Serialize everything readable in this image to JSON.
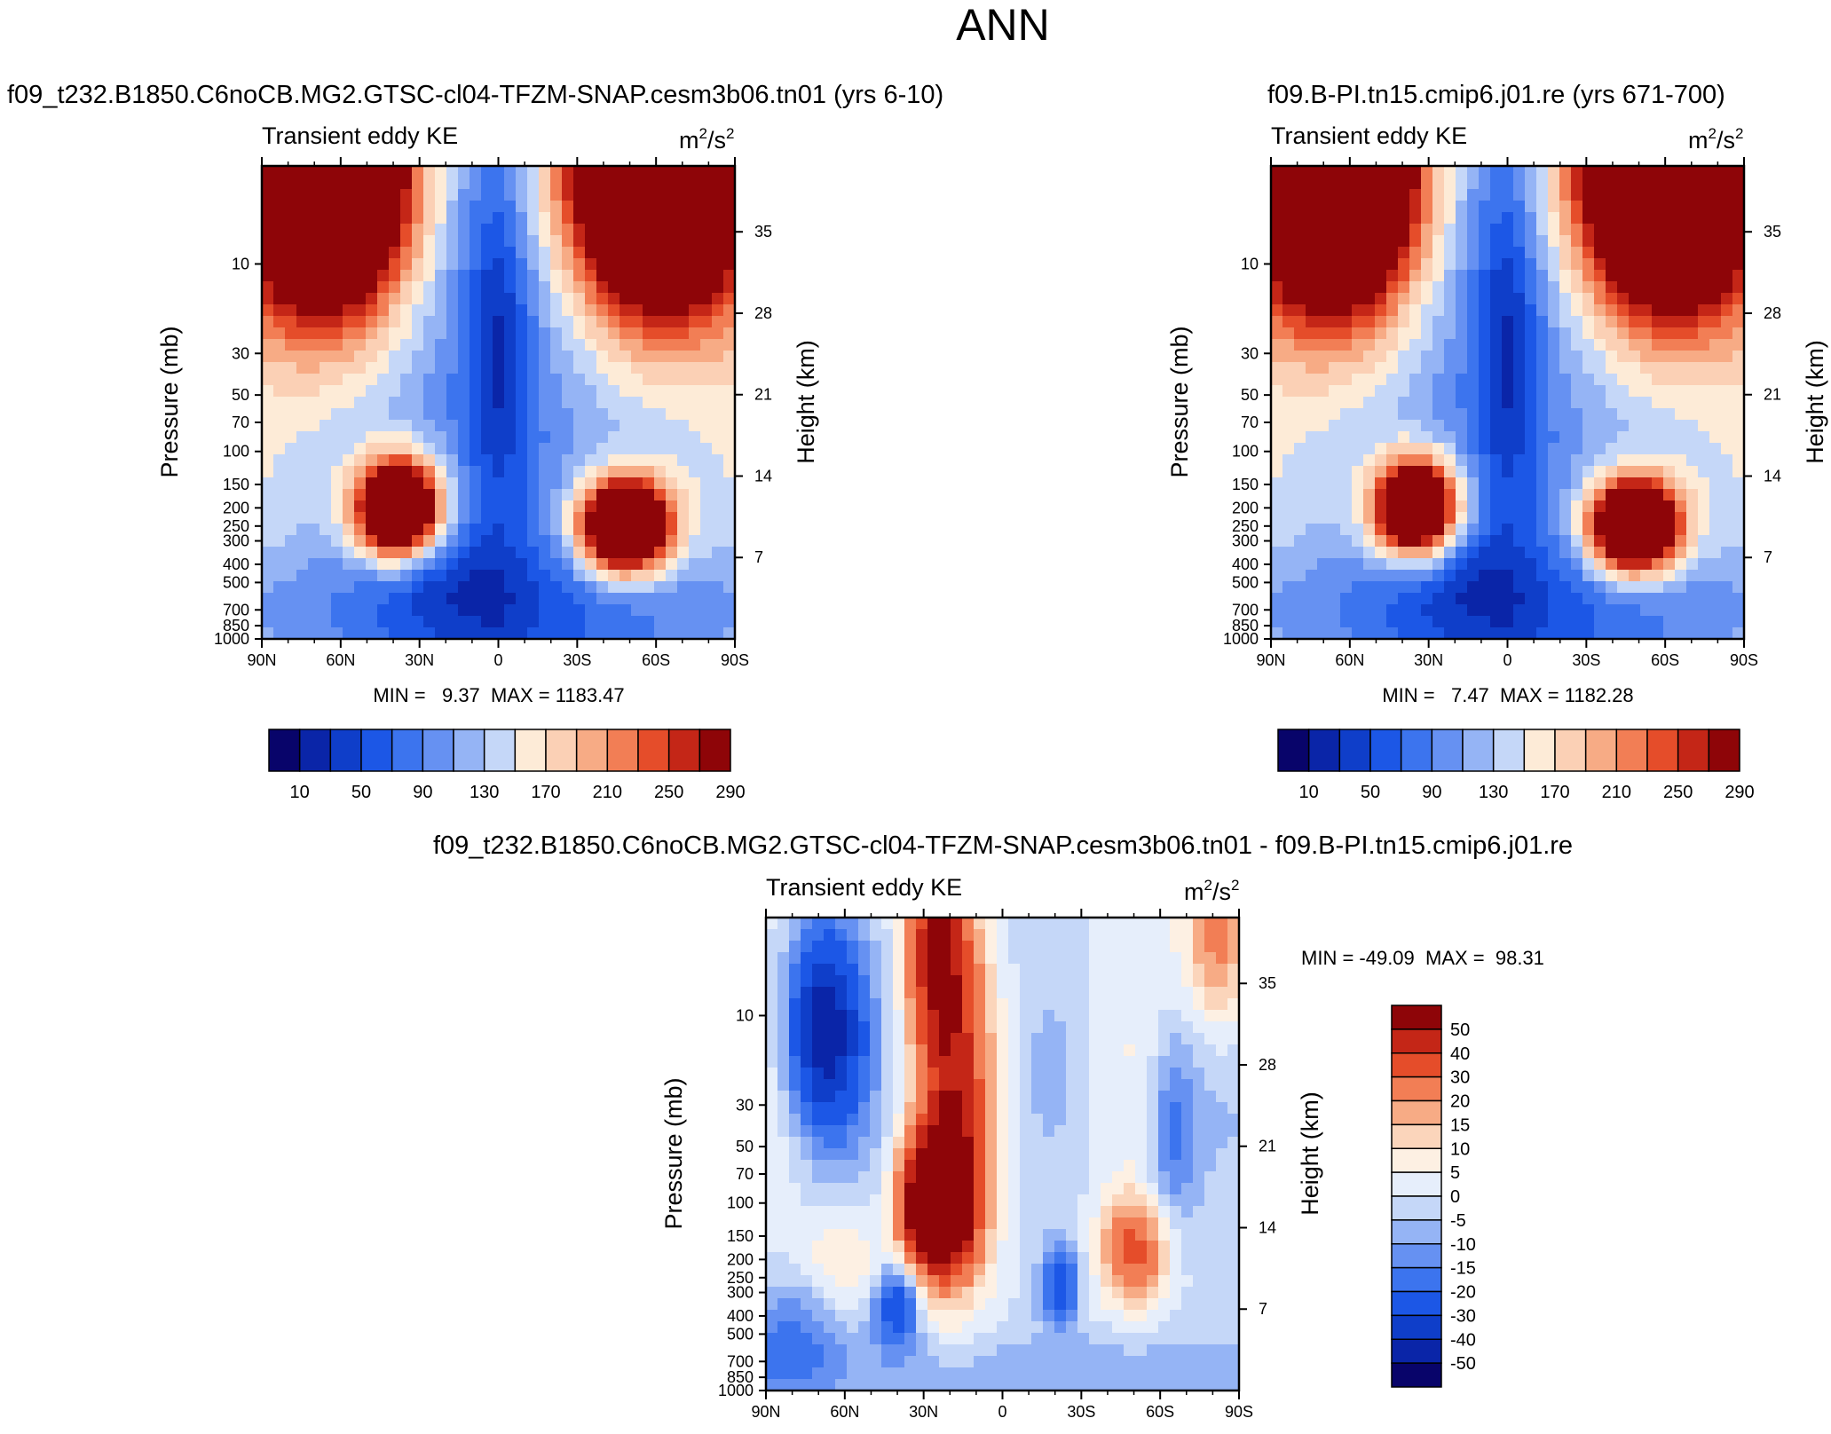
{
  "figure": {
    "title": "ANN"
  },
  "colors": {
    "panel_scale": [
      "#08046a",
      "#0a25a8",
      "#0f3ec9",
      "#1c57e6",
      "#3c74ee",
      "#6691f2",
      "#95b4f5",
      "#c5d7f8",
      "#fdebd7",
      "#fbd0b5",
      "#f7ab85",
      "#f27e55",
      "#e54d2a",
      "#c42617",
      "#8e0508"
    ],
    "diff_scale": [
      "#08046a",
      "#0a25a8",
      "#0f3ec9",
      "#1c57e6",
      "#3c74ee",
      "#6691f2",
      "#95b4f5",
      "#c5d7f8",
      "#e6eefb",
      "#fdf0e3",
      "#fbd5bb",
      "#f7ab85",
      "#f27e55",
      "#e54d2a",
      "#c42617",
      "#8e0508"
    ]
  },
  "chart_data": [
    {
      "type": "heatmap",
      "title": "f09_t232.B1850.C6noCB.MG2.GTSC-cl04-TFZM-SNAP.cesm3b06.tn01 (yrs 6-10)",
      "left_string": "Transient eddy KE",
      "units": "m2/s2",
      "units_base": "m",
      "units_exp1": "2",
      "units_mid": "/s",
      "units_exp2": "2",
      "xlabel": "",
      "ylabel": "Pressure (mb)",
      "ylabel_right": "Height (km)",
      "x_ticks": [
        "90N",
        "60N",
        "30N",
        "0",
        "30S",
        "60S",
        "90S"
      ],
      "y_ticks": [
        "10",
        "30",
        "50",
        "70",
        "100",
        "150",
        "200",
        "250",
        "300",
        "400",
        "500",
        "700",
        "850",
        "1000"
      ],
      "y_ticks_right": [
        "35",
        "28",
        "21",
        "14",
        "7"
      ],
      "xlim": [
        90,
        -90
      ],
      "ylim": [
        1000,
        3
      ],
      "stats": "MIN =   9.37  MAX = 1183.47",
      "min": 9.37,
      "max": 1183.47,
      "colorbar_labels": [
        "10",
        "50",
        "90",
        "130",
        "170",
        "210",
        "250",
        "290"
      ],
      "features": {
        "strat_fill": 300,
        "north_jet": {
          "lat": 38,
          "p": 200,
          "peak": 300
        },
        "south_jet": {
          "lat": -48,
          "p": 250,
          "peak": 300
        },
        "equatorial_min": 20
      }
    },
    {
      "type": "heatmap",
      "title": "f09.B-PI.tn15.cmip6.j01.re (yrs 671-700)",
      "left_string": "Transient eddy KE",
      "units": "m2/s2",
      "units_base": "m",
      "units_exp1": "2",
      "units_mid": "/s",
      "units_exp2": "2",
      "xlabel": "",
      "ylabel": "Pressure (mb)",
      "ylabel_right": "Height (km)",
      "x_ticks": [
        "90N",
        "60N",
        "30N",
        "0",
        "30S",
        "60S",
        "90S"
      ],
      "y_ticks": [
        "10",
        "30",
        "50",
        "70",
        "100",
        "150",
        "200",
        "250",
        "300",
        "400",
        "500",
        "700",
        "850",
        "1000"
      ],
      "y_ticks_right": [
        "35",
        "28",
        "21",
        "14",
        "7"
      ],
      "xlim": [
        90,
        -90
      ],
      "ylim": [
        1000,
        3
      ],
      "stats": "MIN =   7.47  MAX = 1182.28",
      "min": 7.47,
      "max": 1182.28,
      "colorbar_labels": [
        "10",
        "50",
        "90",
        "130",
        "170",
        "210",
        "250",
        "290"
      ],
      "features": {
        "strat_fill": 300,
        "north_jet": {
          "lat": 35,
          "p": 200,
          "peak": 280
        },
        "south_jet": {
          "lat": -48,
          "p": 250,
          "peak": 300
        },
        "equatorial_min": 10
      }
    },
    {
      "type": "heatmap",
      "title": "f09_t232.B1850.C6noCB.MG2.GTSC-cl04-TFZM-SNAP.cesm3b06.tn01 - f09.B-PI.tn15.cmip6.j01.re",
      "left_string": "Transient eddy KE",
      "units": "m2/s2",
      "units_base": "m",
      "units_exp1": "2",
      "units_mid": "/s",
      "units_exp2": "2",
      "xlabel": "",
      "ylabel": "Pressure (mb)",
      "ylabel_right": "Height (km)",
      "x_ticks": [
        "90N",
        "60N",
        "30N",
        "0",
        "30S",
        "60S",
        "90S"
      ],
      "y_ticks": [
        "10",
        "30",
        "50",
        "70",
        "100",
        "150",
        "200",
        "250",
        "300",
        "400",
        "500",
        "700",
        "850",
        "1000"
      ],
      "y_ticks_right": [
        "35",
        "28",
        "21",
        "14",
        "7"
      ],
      "xlim": [
        90,
        -90
      ],
      "ylim": [
        1000,
        3
      ],
      "stats": "MIN = -49.09  MAX =  98.31",
      "min": -49.09,
      "max": 98.31,
      "colorbar_labels": [
        "50",
        "40",
        "30",
        "20",
        "15",
        "10",
        "5",
        "0",
        "-5",
        "-10",
        "-15",
        "-20",
        "-30",
        "-40",
        "-50"
      ],
      "features": {
        "positive_max_lat": 25,
        "positive_max_p": 100,
        "negative_min_lat": 65,
        "negative_min_p": 10
      }
    }
  ]
}
